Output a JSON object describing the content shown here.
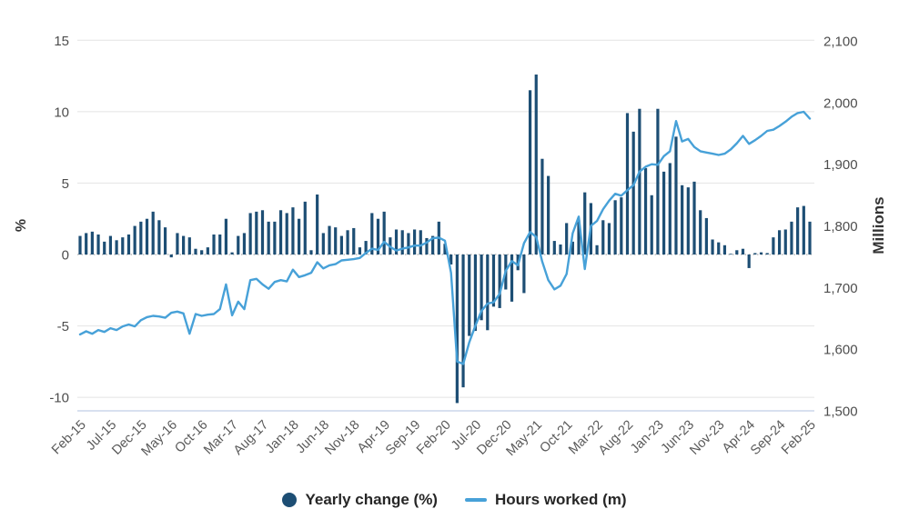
{
  "chart_data": {
    "type": "bar+line",
    "title": "",
    "frequency": "monthly",
    "start_month": "Feb-15",
    "end_month": "Feb-25",
    "x_tick_every": 5,
    "x_tick_labels": [
      "Feb-15",
      "Jul-15",
      "Dec-15",
      "May-16",
      "Oct-16",
      "Mar-17",
      "Aug-17",
      "Jan-18",
      "Jun-18",
      "Nov-18",
      "Apr-19",
      "Sep-19",
      "Feb-20",
      "Jul-20",
      "Dec-20",
      "May-21",
      "Oct-21",
      "Mar-22",
      "Aug-22",
      "Jan-23",
      "Jun-23",
      "Nov-23",
      "Apr-24",
      "Sep-24",
      "Feb-25"
    ],
    "left_axis": {
      "title": "%",
      "ticks": [
        15,
        10,
        5,
        0,
        -5,
        -10
      ],
      "tick_labels": [
        "15",
        "10",
        "5",
        "0",
        "-5",
        "-10"
      ],
      "range": [
        -11,
        15
      ]
    },
    "right_axis": {
      "title": "Millions",
      "ticks": [
        2100,
        2000,
        1900,
        1800,
        1700,
        1600,
        1500
      ],
      "tick_labels": [
        "2,100",
        "2,000",
        "1,900",
        "1,800",
        "1,700",
        "1,600",
        "1,500"
      ],
      "range": [
        1500,
        2100
      ]
    },
    "grid": true,
    "legend_position": "bottom-center",
    "series": [
      {
        "name": "Yearly change (%)",
        "type": "bar",
        "axis": "left",
        "color": "#1D4E74",
        "values": [
          1.3,
          1.5,
          1.6,
          1.4,
          0.9,
          1.3,
          1.0,
          1.2,
          1.4,
          2.0,
          2.3,
          2.5,
          3.0,
          2.4,
          1.9,
          -0.2,
          1.5,
          1.3,
          1.2,
          0.4,
          0.3,
          0.5,
          1.4,
          1.4,
          2.5,
          0.15,
          1.3,
          1.5,
          2.9,
          3.0,
          3.1,
          2.3,
          2.3,
          3.1,
          2.9,
          3.3,
          2.5,
          3.7,
          0.3,
          4.2,
          1.5,
          2.0,
          1.9,
          1.3,
          1.7,
          1.85,
          0.5,
          0.95,
          2.9,
          2.5,
          3.0,
          1.2,
          1.75,
          1.7,
          1.5,
          1.75,
          1.7,
          1.15,
          1.3,
          2.3,
          0.75,
          -0.7,
          -10.4,
          -9.3,
          -5.7,
          -5.35,
          -4.6,
          -5.3,
          -3.65,
          -3.75,
          -2.45,
          -3.3,
          -1.1,
          -2.7,
          11.5,
          12.6,
          6.7,
          5.5,
          0.95,
          0.7,
          2.2,
          0.9,
          2.4,
          4.35,
          3.6,
          0.65,
          2.4,
          2.2,
          3.8,
          4.0,
          9.9,
          8.6,
          10.2,
          6.05,
          4.15,
          10.2,
          5.8,
          6.4,
          8.25,
          4.85,
          4.7,
          5.1,
          3.1,
          2.55,
          1.05,
          0.85,
          0.65,
          0.05,
          0.3,
          0.4,
          -0.95,
          0.1,
          0.15,
          0.1,
          1.2,
          1.7,
          1.75,
          2.3,
          3.3,
          3.4,
          2.3
        ]
      },
      {
        "name": "Hours worked (m)",
        "type": "line",
        "axis": "right",
        "color": "#47A1D8",
        "values": [
          1624,
          1629,
          1625,
          1631,
          1628,
          1634,
          1631,
          1637,
          1640,
          1637,
          1647,
          1652,
          1654,
          1653,
          1651,
          1659,
          1661,
          1658,
          1625,
          1657,
          1654,
          1656,
          1657,
          1665,
          1705,
          1655,
          1677,
          1665,
          1712,
          1714,
          1705,
          1698,
          1709,
          1712,
          1710,
          1729,
          1717,
          1720,
          1724,
          1741,
          1731,
          1736,
          1738,
          1744,
          1745,
          1746,
          1748,
          1756,
          1763,
          1761,
          1774,
          1766,
          1760,
          1763,
          1765,
          1768,
          1768,
          1773,
          1780,
          1781,
          1776,
          1724,
          1580,
          1576,
          1611,
          1638,
          1662,
          1674,
          1676,
          1690,
          1727,
          1743,
          1736,
          1772,
          1790,
          1782,
          1742,
          1712,
          1697,
          1703,
          1722,
          1788,
          1815,
          1730,
          1800,
          1808,
          1827,
          1841,
          1852,
          1849,
          1858,
          1866,
          1888,
          1896,
          1900,
          1899,
          1913,
          1921,
          1970,
          1937,
          1941,
          1928,
          1921,
          1919,
          1917,
          1915,
          1917,
          1924,
          1934,
          1946,
          1933,
          1939,
          1946,
          1954,
          1956,
          1962,
          1969,
          1977,
          1983,
          1985,
          1974
        ]
      }
    ],
    "legend": [
      {
        "label": "Yearly change (%)",
        "swatch": "circle",
        "color": "#1D4E74"
      },
      {
        "label": "Hours worked (m)",
        "swatch": "line",
        "color": "#47A1D8"
      }
    ],
    "colors": {
      "bar": "#1D4E74",
      "line": "#47A1D8",
      "grid": "#E4E4E4",
      "zero_line": "#999999",
      "baseline": "#CCD6EB",
      "y_tick_text": "#4D4D4D",
      "x_tick_text": "#595959",
      "axis_title_text": "#333333"
    }
  }
}
